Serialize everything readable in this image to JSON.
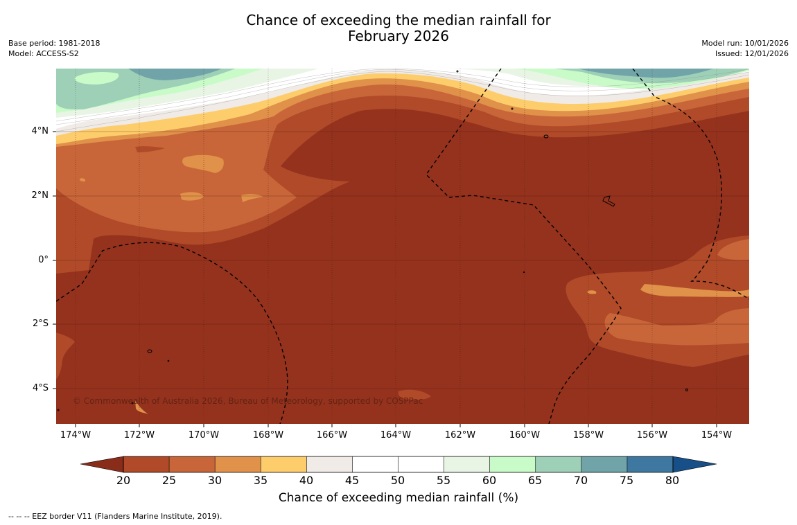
{
  "title": {
    "line1": "Chance of exceeding the median rainfall for",
    "line2": "February 2026"
  },
  "meta_left": {
    "base_period": "Base period: 1981-2018",
    "model": "Model: ACCESS-S2"
  },
  "meta_right": {
    "model_run": "Model run: 10/01/2026",
    "issued": "Issued: 12/01/2026"
  },
  "map": {
    "lat_ticks": [
      "4°N",
      "2°N",
      "0°",
      "2°S",
      "4°S"
    ],
    "lon_ticks": [
      "174°W",
      "172°W",
      "170°W",
      "168°W",
      "166°W",
      "164°W",
      "162°W",
      "160°W",
      "158°W",
      "156°W",
      "154°W"
    ],
    "copyright": "© Commonwealth of Australia 2026, Bureau of Meteorology, supported by COSPPac",
    "background_color": "#95321e"
  },
  "colorbar": {
    "ticks": [
      "20",
      "25",
      "30",
      "35",
      "40",
      "45",
      "50",
      "55",
      "60",
      "65",
      "70",
      "75",
      "80"
    ],
    "colors": [
      "#b04a28",
      "#c8663a",
      "#e0914a",
      "#fdcd6c",
      "#f0ebe6",
      "#ffffff",
      "#ffffff",
      "#e8f5e5",
      "#c8fbc8",
      "#9ed0b8",
      "#70a4a8",
      "#3e78a0"
    ],
    "under_color": "#8a2c1a",
    "over_color": "#174f88",
    "label": "Chance of exceeding median rainfall (%)"
  },
  "footnote": "--  --  -- EEZ border V11 (Flanders Marine Institute, 2019)."
}
